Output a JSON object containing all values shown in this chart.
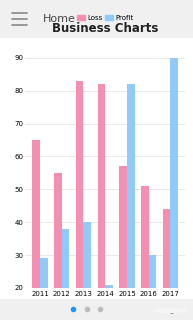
{
  "title": "Business Charts",
  "years": [
    "2011",
    "2012",
    "2013",
    "2014",
    "2015",
    "2016",
    "2017"
  ],
  "loss": [
    65,
    55,
    83,
    82,
    57,
    51,
    44
  ],
  "profit": [
    29,
    38,
    40,
    21,
    82,
    30,
    90
  ],
  "loss_color": "#F48FB1",
  "profit_color": "#90CAF9",
  "ylim": [
    20,
    92
  ],
  "yticks": [
    20,
    30,
    40,
    50,
    60,
    70,
    80,
    90
  ],
  "bar_width": 0.35,
  "legend_loss": "Loss",
  "legend_profit": "Profit",
  "bg_color": "#f0f0f0",
  "card_color": "#ffffff",
  "toolbar_color": "#f5f5f5",
  "grid_color": "#e0e0e0",
  "title_fontsize": 8.5,
  "tick_fontsize": 5,
  "legend_fontsize": 5,
  "toolbar_text": "Home"
}
